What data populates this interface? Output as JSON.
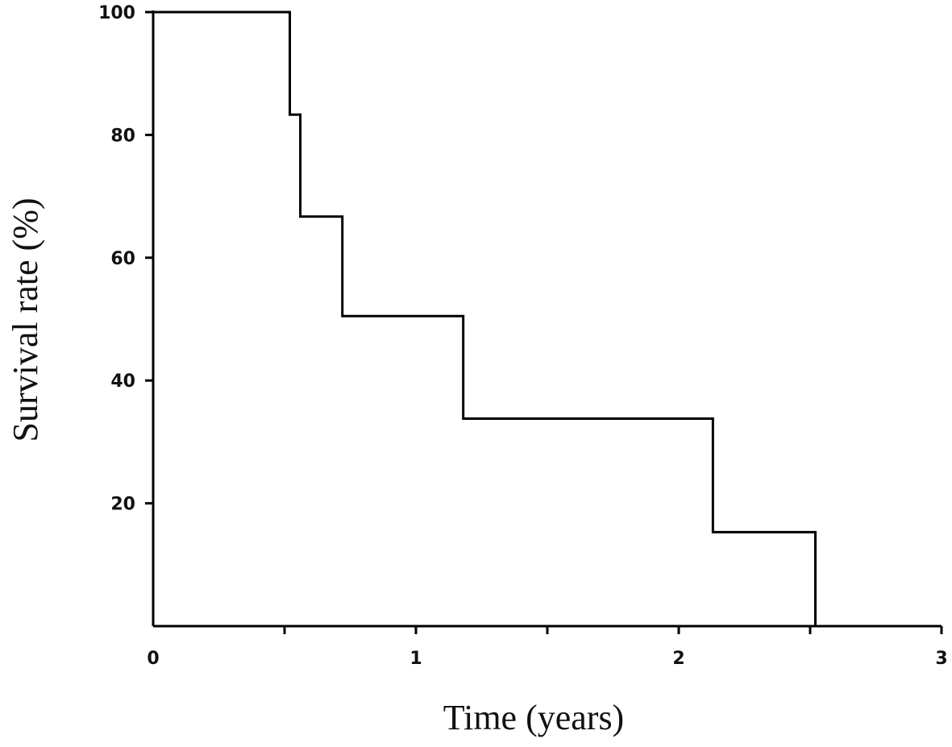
{
  "chart_data": {
    "type": "line",
    "step": true,
    "title": "",
    "xlabel": "Time (years)",
    "ylabel": "Survival rate (%)",
    "xlim": [
      0,
      3
    ],
    "ylim": [
      0,
      100
    ],
    "x_ticks": [
      0,
      1,
      2,
      3
    ],
    "x_tick_labels": [
      "0",
      "1",
      "2",
      "3"
    ],
    "x_minor_ticks": [
      0.5,
      1.5,
      2.5
    ],
    "y_ticks": [
      20,
      40,
      60,
      80,
      100
    ],
    "y_tick_labels": [
      "20",
      "40",
      "60",
      "80",
      "100"
    ],
    "grid": false,
    "legend": "none",
    "series": [
      {
        "x": [
          0,
          0.52,
          0.56,
          0.72,
          1.18,
          2.13,
          2.52
        ],
        "y": [
          100,
          83.3,
          66.7,
          50.5,
          33.8,
          15.3,
          0
        ]
      }
    ]
  }
}
